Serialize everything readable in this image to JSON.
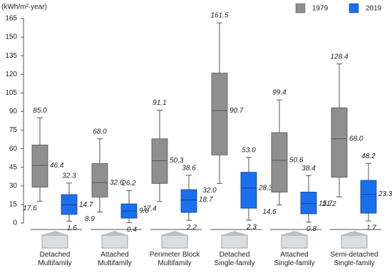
{
  "chart_data": {
    "type": "box",
    "y_label": "(kWh/m²·year)",
    "categories": [
      "Detached\nMultifamily",
      "Attached\nMultifamily",
      "Perimeter Block\nMultifamily",
      "Detached\nSingle-family",
      "Attached\nSingle-family",
      "Semi-detached\nSingle-family"
    ],
    "series": [
      {
        "name": "1979",
        "color": "#8f8f8f",
        "stroke": "#555555",
        "min": [
          17.6,
          8.9,
          17.4,
          32.0,
          14.6,
          21.2
        ],
        "min_labels": [
          "17.6",
          "8.9",
          "17.4",
          "32.0",
          "14.6",
          "21.2"
        ],
        "q1": [
          29,
          21,
          32,
          55,
          25,
          37
        ],
        "median": [
          46.4,
          32.6,
          50.3,
          90.7,
          50.6,
          68.0
        ],
        "median_labels": [
          "46.4",
          "32.6",
          "50.3",
          "90.7",
          "50.6",
          "68.0"
        ],
        "q3": [
          63,
          48,
          68,
          121,
          73,
          93
        ],
        "max": [
          85.0,
          68.0,
          91.1,
          161.5,
          99.4,
          128.4
        ],
        "max_labels": [
          "85.0",
          "68.0",
          "91.1",
          "161.5",
          "99.4",
          "128.4"
        ]
      },
      {
        "name": "2019",
        "color": "#1a6ff0",
        "stroke": "#1a3f80",
        "min": [
          1.6,
          0.4,
          2.2,
          2.3,
          0.8,
          1.7
        ],
        "min_labels": [
          "1.6",
          "0.4",
          "2.2",
          "2.3",
          "0.8",
          "1.7"
        ],
        "q1": [
          7,
          4,
          8.6,
          12,
          7.5,
          8
        ],
        "median": [
          14.7,
          9.8,
          18.7,
          28.3,
          15.7,
          23.3
        ],
        "median_labels": [
          "14.7",
          "9.8",
          "18.7",
          "28.3",
          "15.7",
          "23.3"
        ],
        "q3": [
          23,
          15.5,
          27,
          41,
          25,
          34.5
        ],
        "max": [
          32.3,
          26.2,
          38.6,
          53.0,
          38.4,
          48.2
        ],
        "max_labels": [
          "32.3",
          "26.2",
          "38.6",
          "53.0",
          "38.4",
          "48.2"
        ]
      }
    ],
    "ylim": [
      0,
      165
    ],
    "yticks": [
      0,
      15,
      30,
      45,
      60,
      75,
      90,
      105,
      120,
      135,
      150,
      165
    ],
    "legend": "top-right"
  }
}
